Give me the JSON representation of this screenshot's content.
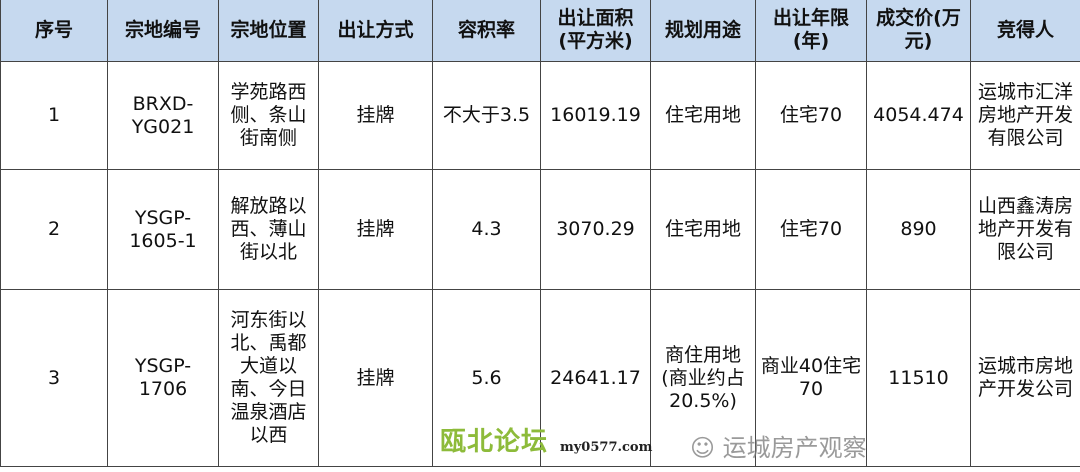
{
  "headers": [
    "序号",
    "宗地编号",
    "宗地位置",
    "出让方式",
    "容积率",
    "出让面积(平方米)",
    "规划用途",
    "出让年限(年)",
    "成交价(万元)",
    "竞得人"
  ],
  "rows": [
    [
      "1",
      "BRXD-YG021",
      "学苑路西侧、条山街南侧",
      "挂牌",
      "不大于3.5",
      "16019.19",
      "住宅用地",
      "住宅70",
      "4054.474",
      "运城市汇洋房地产开发有限公司"
    ],
    [
      "2",
      "YSGP-1605-1",
      "解放路以西、薄山街以北",
      "挂牌",
      "4.3",
      "3070.29",
      "住宅用地",
      "住宅70",
      "890",
      "山西鑫涛房地产开发有限公司"
    ],
    [
      "3",
      "YSGP-1706",
      "河东街以北、禹都大道以南、今日温泉酒店以西",
      "挂牌",
      "5.6",
      "24641.17",
      "商住用地(商业约占20.5%)",
      "商业40住宅70",
      "11510",
      "运城市房地产开发公司"
    ]
  ],
  "watermarks": {
    "forum": "瓯北论坛",
    "forum_url": "my0577.com",
    "account": "运城房产观察",
    "account_icon": "wechat-icon"
  },
  "colors": {
    "header_bg": "#c6d9ef",
    "forum": "#8dbb3a"
  }
}
